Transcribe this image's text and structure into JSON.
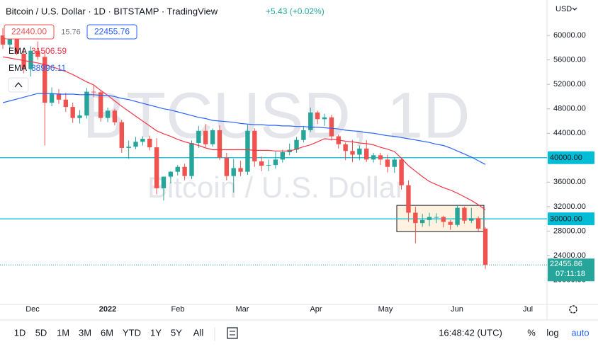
{
  "header": {
    "title": "Bitcoin / U.S. Dollar · 1D · BITSTAMP · TradingView",
    "change": "+5.43 (+0.02%)",
    "currency": "USD"
  },
  "quote": {
    "sell": "22440.00",
    "spread": "15.76",
    "buy": "22455.76"
  },
  "indicators": [
    {
      "name": "EMA",
      "value": "31506.59"
    },
    {
      "name": "EMA",
      "value": "38996.11"
    }
  ],
  "watermark": {
    "symbol": "BTCUSD, 1D",
    "description": "Bitcoin / U.S. Dollar"
  },
  "chart_data": {
    "type": "candlestick",
    "up_color": "#26a69a",
    "down_color": "#ef5350",
    "open": [
      60000,
      58500,
      59500,
      57000,
      54500,
      57500,
      56500,
      49000,
      50500,
      49500,
      48300,
      46500,
      46900,
      50800,
      50700,
      46500,
      47700,
      45800,
      41600,
      41800,
      42600,
      43100,
      41700,
      35000,
      36900,
      37700,
      38500,
      37000,
      42400,
      44400,
      42200,
      44500,
      40000,
      37000,
      38300,
      37700,
      44400,
      39400,
      38700,
      38800,
      39700,
      40900,
      41300,
      42900,
      44500,
      47400,
      46300,
      46600,
      43500,
      42200,
      41100,
      40500,
      41500,
      39700,
      40400,
      39700,
      38500,
      39700,
      35500,
      31000,
      29300,
      29800,
      30300,
      30300,
      29500,
      29000,
      31800,
      29700,
      30100,
      28400
    ],
    "high": [
      61200,
      60200,
      60400,
      58000,
      58200,
      59000,
      57500,
      51500,
      51200,
      50600,
      49000,
      47800,
      51400,
      51900,
      51000,
      48200,
      48000,
      46200,
      42800,
      43400,
      43500,
      43600,
      43200,
      36700,
      37800,
      38800,
      39000,
      42800,
      45200,
      45500,
      44800,
      45300,
      40800,
      39800,
      39500,
      45400,
      44800,
      40200,
      39700,
      41000,
      41300,
      42300,
      43400,
      45200,
      48200,
      47700,
      47200,
      47000,
      43800,
      42500,
      42900,
      42000,
      42900,
      40800,
      40800,
      40500,
      40000,
      40000,
      36300,
      32000,
      30800,
      31000,
      30900,
      30500,
      29800,
      32300,
      32000,
      31800,
      30400,
      28600
    ],
    "low": [
      57800,
      57900,
      56800,
      53800,
      53300,
      56000,
      42000,
      48400,
      48800,
      47500,
      45700,
      45600,
      46400,
      49900,
      45900,
      45800,
      45300,
      40800,
      39800,
      41400,
      42000,
      41200,
      34000,
      33000,
      35800,
      37100,
      36300,
      36500,
      41600,
      41700,
      41800,
      39600,
      36300,
      34300,
      37000,
      37200,
      38500,
      37800,
      37800,
      38200,
      39200,
      40400,
      40800,
      42500,
      44200,
      45500,
      45200,
      42800,
      41500,
      39600,
      39300,
      39600,
      39300,
      39200,
      38800,
      37600,
      37500,
      34800,
      29500,
      26000,
      28700,
      28800,
      29300,
      28600,
      28200,
      28700,
      29200,
      29300,
      28000,
      21800
    ],
    "close": [
      58500,
      59500,
      57000,
      54500,
      57500,
      56500,
      49000,
      50500,
      49500,
      48300,
      46500,
      46900,
      50800,
      50700,
      46500,
      47700,
      45800,
      41600,
      41800,
      42600,
      43100,
      41700,
      35000,
      36900,
      37700,
      38500,
      37000,
      42400,
      44400,
      42200,
      44500,
      40000,
      37000,
      38300,
      37700,
      44400,
      39400,
      38700,
      38800,
      39700,
      40900,
      41300,
      42900,
      44500,
      47400,
      46300,
      46600,
      43500,
      42200,
      41100,
      40500,
      41500,
      39700,
      40400,
      39700,
      38500,
      39700,
      35500,
      31000,
      29300,
      29800,
      30300,
      30300,
      29500,
      29000,
      31800,
      29700,
      30100,
      28400,
      22456
    ],
    "ema_lines": [
      {
        "color": "#f23645",
        "values": [
          56500,
          56300,
          56100,
          55900,
          55700,
          55500,
          55200,
          54900,
          54500,
          54100,
          53600,
          53000,
          52400,
          51900,
          51000,
          50200,
          49300,
          48400,
          47600,
          46800,
          46000,
          45200,
          44400,
          43900,
          43500,
          43000,
          42600,
          42300,
          42000,
          41600,
          41300,
          41300,
          41300,
          41300,
          41300,
          41300,
          41200,
          41200,
          41200,
          41100,
          41100,
          41100,
          41400,
          41800,
          42100,
          42600,
          43100,
          43000,
          42900,
          42700,
          42600,
          42400,
          42300,
          42100,
          41700,
          41400,
          41000,
          39900,
          38700,
          37800,
          36900,
          36100,
          35600,
          35100,
          34700,
          34200,
          33600,
          33000,
          32300,
          31500
        ]
      },
      {
        "color": "#2962ff",
        "values": [
          49000,
          49300,
          49600,
          49900,
          50200,
          50500,
          50500,
          50500,
          50400,
          50400,
          50400,
          50300,
          50300,
          50300,
          50200,
          50200,
          50000,
          49700,
          49500,
          49200,
          48900,
          48600,
          48300,
          48000,
          47800,
          47500,
          47200,
          46900,
          46600,
          46400,
          46100,
          46000,
          45900,
          45800,
          45600,
          45500,
          45400,
          45400,
          45300,
          45300,
          45200,
          45200,
          45100,
          45100,
          45000,
          45000,
          44900,
          44800,
          44700,
          44500,
          44400,
          44300,
          44100,
          44000,
          43800,
          43600,
          43500,
          43300,
          43100,
          42900,
          42700,
          42500,
          42200,
          42000,
          41600,
          41100,
          40600,
          40100,
          39500,
          38900
        ]
      }
    ],
    "ylim": [
      16000,
      65800
    ],
    "yticks": [
      {
        "value": 60000,
        "label": "60000.00"
      },
      {
        "value": 56000,
        "label": "56000.00"
      },
      {
        "value": 52000,
        "label": "52000.00"
      },
      {
        "value": 48000,
        "label": "48000.00"
      },
      {
        "value": 44000,
        "label": "44000.00"
      },
      {
        "value": 36000,
        "label": "36000.00"
      },
      {
        "value": 32000,
        "label": "32000.00"
      },
      {
        "value": 28000,
        "label": "28000.00"
      },
      {
        "value": 24000,
        "label": "24000.00"
      },
      {
        "value": 20000,
        "label": "20000.00"
      }
    ],
    "xticks": [
      "Dec",
      "2022",
      "Feb",
      "Mar",
      "Apr",
      "May",
      "Jun",
      "Jul"
    ],
    "hlines": [
      {
        "value": 40000,
        "label": "40000.00",
        "color": "#00bcd4"
      },
      {
        "value": 30000,
        "label": "30000.00",
        "color": "#00bcd4"
      }
    ],
    "rectangle": {
      "high": 32200,
      "low": 27900
    },
    "last_price": {
      "value": 22455.86,
      "label": "22455.86",
      "countdown": "07:11:18",
      "color": "#26a69a"
    }
  },
  "toolbar": {
    "ranges": [
      "1D",
      "5D",
      "1M",
      "3M",
      "6M",
      "YTD",
      "1Y",
      "5Y",
      "All"
    ],
    "time": "16:48:42 (UTC)",
    "options": [
      "%",
      "log",
      "auto"
    ]
  }
}
